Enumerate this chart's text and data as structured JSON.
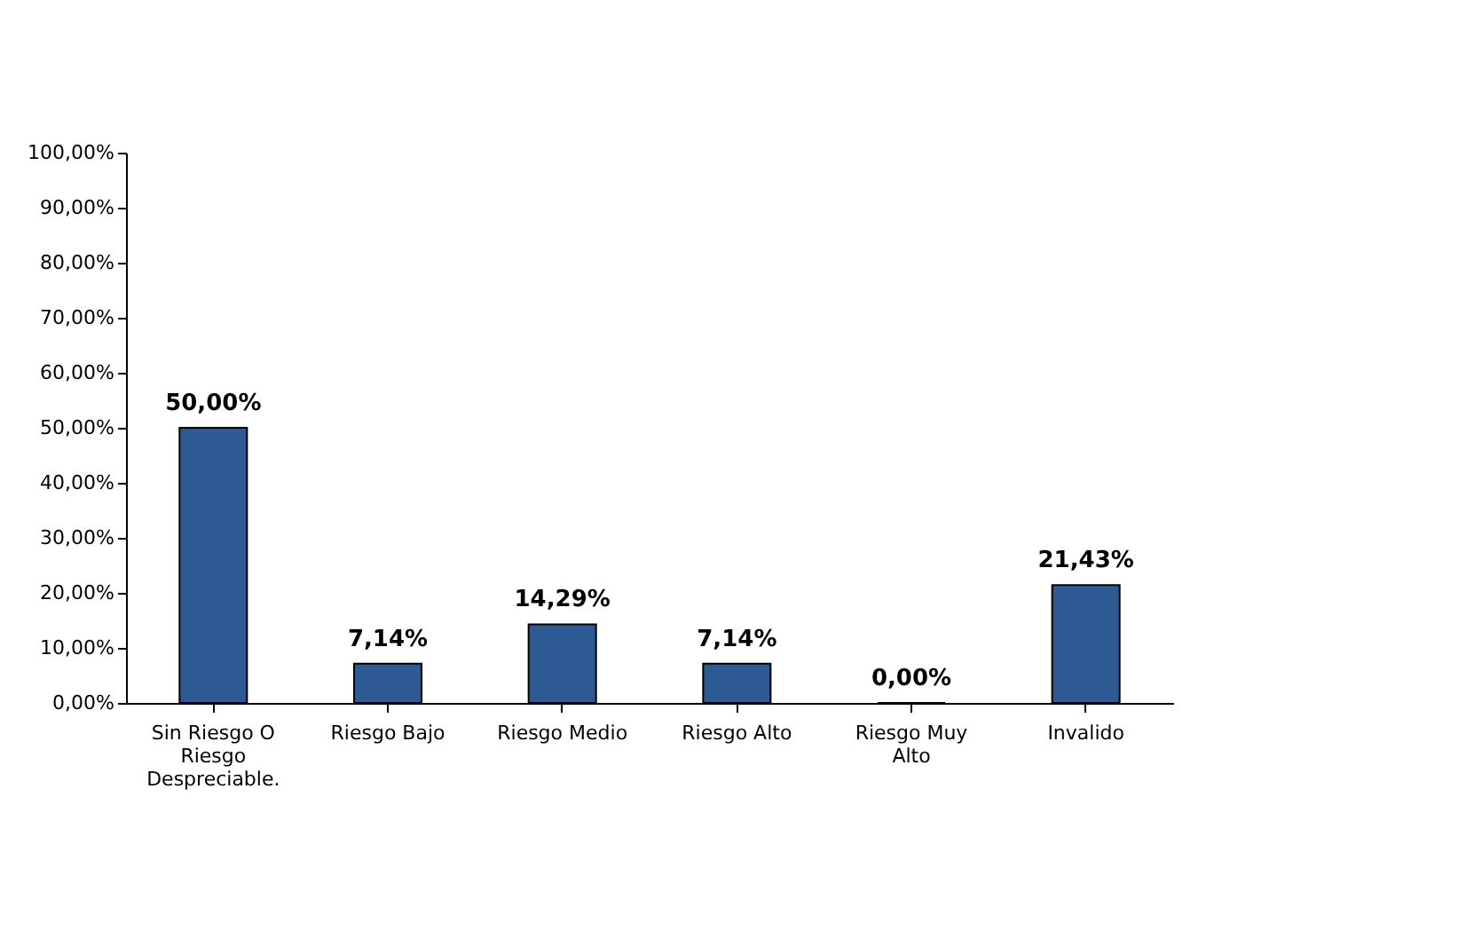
{
  "chart_data": {
    "type": "bar",
    "categories": [
      "Sin Riesgo O Riesgo Despreciable.",
      "Riesgo Bajo",
      "Riesgo Medio",
      "Riesgo Alto",
      "Riesgo Muy Alto",
      "Invalido"
    ],
    "values": [
      50,
      7.14,
      14.29,
      7.14,
      0,
      21.43
    ],
    "value_labels": [
      "50,00%",
      "7,14%",
      "14,29%",
      "7,14%",
      "0,00%",
      "21,43%"
    ],
    "color": "#2e5a94",
    "ylim": [
      0,
      100
    ],
    "yticks": [
      {
        "value": 0,
        "label": "0,00%"
      },
      {
        "value": 10,
        "label": "10,00%"
      },
      {
        "value": 20,
        "label": "20,00%"
      },
      {
        "value": 30,
        "label": "30,00%"
      },
      {
        "value": 40,
        "label": "40,00%"
      },
      {
        "value": 50,
        "label": "50,00%"
      },
      {
        "value": 60,
        "label": "60,00%"
      },
      {
        "value": 70,
        "label": "70,00%"
      },
      {
        "value": 80,
        "label": "80,00%"
      },
      {
        "value": 90,
        "label": "90,00%"
      },
      {
        "value": 100,
        "label": "100,00%"
      }
    ],
    "grid": false
  }
}
